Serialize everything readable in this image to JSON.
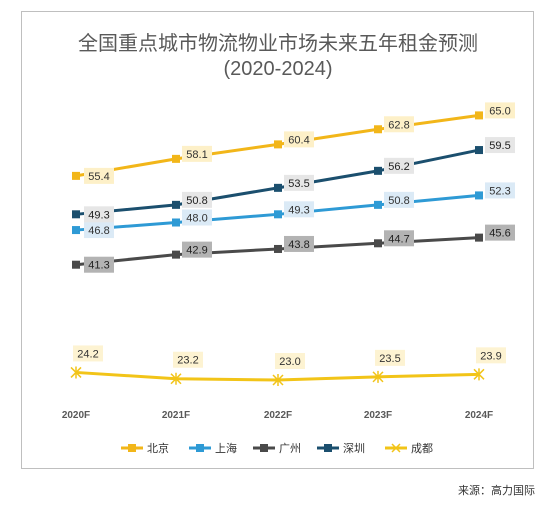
{
  "title_line1": "全国重点城市物流物业市场未来五年租金预测",
  "title_line2": "(2020-2024)",
  "source": "来源：高力国际",
  "colors": {
    "北京": "#f2b619",
    "上海": "#2e9ad5",
    "广州": "#4a4a4a",
    "深圳": "#1b4f6e",
    "成都": "#f2c418"
  },
  "chart_data": {
    "type": "line",
    "title": "全国重点城市物流物业市场未来五年租金预测 (2020-2024)",
    "categories": [
      "2020F",
      "2021F",
      "2022F",
      "2023F",
      "2024F"
    ],
    "legend_position": "bottom",
    "grid": false,
    "series": [
      {
        "name": "北京",
        "marker": "square",
        "values": [
          55.4,
          58.1,
          60.4,
          62.8,
          65.0
        ]
      },
      {
        "name": "上海",
        "marker": "square",
        "values": [
          46.8,
          48.0,
          49.3,
          50.8,
          52.3
        ]
      },
      {
        "name": "广州",
        "marker": "square",
        "values": [
          41.3,
          42.9,
          43.8,
          44.7,
          45.6
        ]
      },
      {
        "name": "深圳",
        "marker": "square",
        "values": [
          49.3,
          50.8,
          53.5,
          56.2,
          59.5
        ]
      },
      {
        "name": "成都",
        "marker": "star",
        "values": [
          24.2,
          23.2,
          23.0,
          23.5,
          23.9
        ]
      }
    ]
  }
}
